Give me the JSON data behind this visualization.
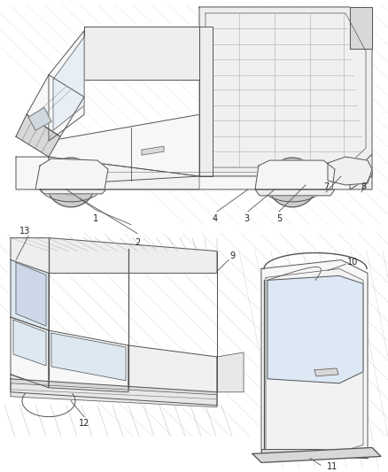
{
  "background_color": "#ffffff",
  "line_color": "#555555",
  "label_color": "#222222",
  "fill_light": "#f7f7f7",
  "fill_mid": "#eeeeee",
  "fill_dark": "#d8d8d8",
  "figsize": [
    4.39,
    5.33
  ],
  "dpi": 100,
  "lw": 0.7
}
